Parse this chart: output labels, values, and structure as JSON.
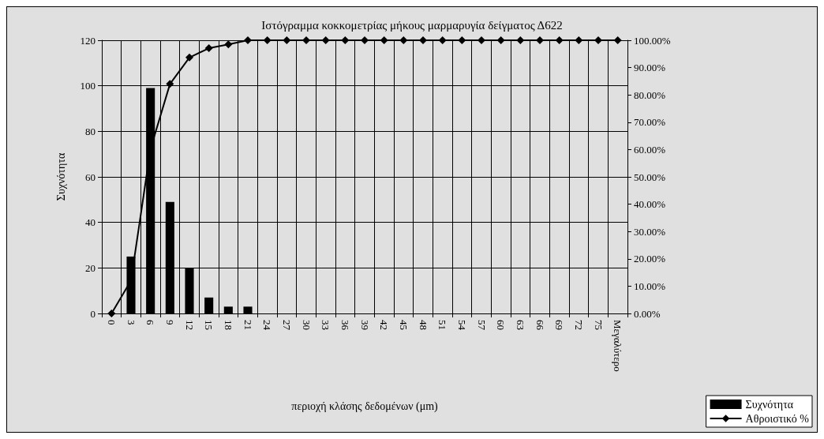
{
  "chart_data": {
    "type": "bar",
    "title": "Ιστόγραμμα κοκκομετρίας μήκους μαρμαρυγία δείγματος Δ622",
    "xlabel": "περιοχή κλάσης δεδομένων (μm)",
    "ylabel": "Συχνότητα",
    "categories": [
      "0",
      "3",
      "6",
      "9",
      "12",
      "15",
      "18",
      "21",
      "24",
      "27",
      "30",
      "33",
      "36",
      "39",
      "42",
      "45",
      "48",
      "51",
      "54",
      "57",
      "60",
      "63",
      "66",
      "69",
      "72",
      "75",
      "Μεγαλύτερο"
    ],
    "series": [
      {
        "name": "Συχνότητα",
        "color": "#000000",
        "values": [
          0,
          25,
          99,
          49,
          20,
          7,
          3,
          3,
          0,
          0,
          0,
          0,
          0,
          0,
          0,
          0,
          0,
          0,
          0,
          0,
          0,
          0,
          0,
          0,
          0,
          0,
          0
        ]
      },
      {
        "name": "Αθροιστικό %",
        "type": "line",
        "axis": "y2",
        "color": "#000000",
        "marker": "diamond",
        "values": [
          0,
          12.1,
          60.2,
          84.0,
          93.7,
          97.1,
          98.5,
          100,
          100,
          100,
          100,
          100,
          100,
          100,
          100,
          100,
          100,
          100,
          100,
          100,
          100,
          100,
          100,
          100,
          100,
          100,
          100
        ]
      }
    ],
    "ylim": [
      0,
      120
    ],
    "yticks": [
      0,
      20,
      40,
      60,
      80,
      100,
      120
    ],
    "y2lim": [
      0,
      100
    ],
    "y2ticks": [
      {
        "value": 0,
        "label": "0.00%"
      },
      {
        "value": 10,
        "label": "10.00%"
      },
      {
        "value": 20,
        "label": "20.00%"
      },
      {
        "value": 30,
        "label": "30.00%"
      },
      {
        "value": 40,
        "label": "40.00%"
      },
      {
        "value": 50,
        "label": "50.00%"
      },
      {
        "value": 60,
        "label": "60.00%"
      },
      {
        "value": 70,
        "label": "70.00%"
      },
      {
        "value": 80,
        "label": "80.00%"
      },
      {
        "value": 90,
        "label": "90.00%"
      },
      {
        "value": 100,
        "label": "100.00%"
      }
    ],
    "grid": true,
    "legend": "bottom right"
  }
}
